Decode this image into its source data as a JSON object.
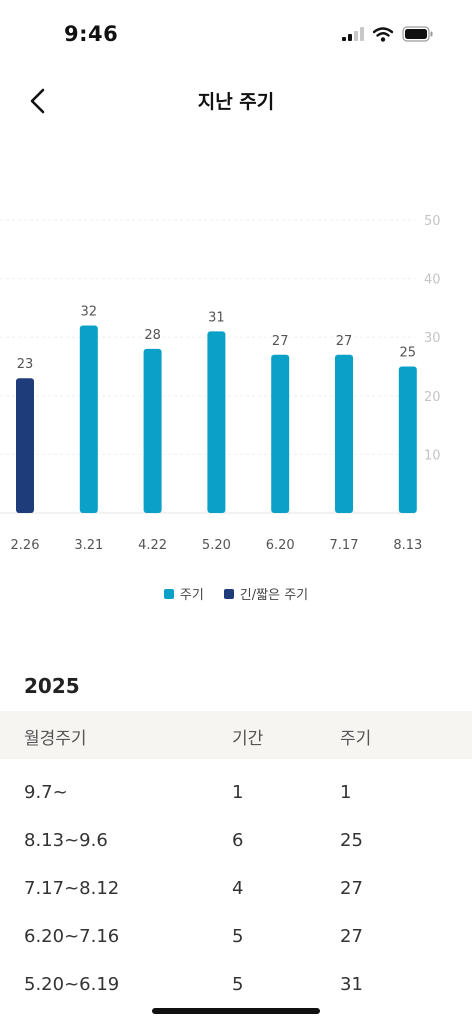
{
  "status_bar": {
    "time": "9:46"
  },
  "header": {
    "title": "지난 주기"
  },
  "colors": {
    "normal": "#0aa0c8",
    "long_short": "#1f3c7a"
  },
  "chart_data": {
    "type": "bar",
    "categories": [
      "2.26",
      "3.21",
      "4.22",
      "5.20",
      "6.20",
      "7.17",
      "8.13"
    ],
    "values": [
      23,
      32,
      28,
      31,
      27,
      27,
      25
    ],
    "kinds": [
      "long_short",
      "normal",
      "normal",
      "normal",
      "normal",
      "normal",
      "normal"
    ],
    "y_ticks": [
      "10",
      "20",
      "30",
      "40",
      "50"
    ],
    "ylim": [
      0,
      50
    ],
    "grid": true,
    "legend": [
      {
        "label": "주기",
        "kind": "normal"
      },
      {
        "label": "긴/짧은 주기",
        "kind": "long_short"
      }
    ],
    "legend_position": "bottom"
  },
  "table": {
    "year": "2025",
    "headers": [
      "월경주기",
      "기간",
      "주기"
    ],
    "rows": [
      [
        "9.7~",
        "1",
        "1"
      ],
      [
        "8.13~9.6",
        "6",
        "25"
      ],
      [
        "7.17~8.12",
        "4",
        "27"
      ],
      [
        "6.20~7.16",
        "5",
        "27"
      ],
      [
        "5.20~6.19",
        "5",
        "31"
      ]
    ]
  }
}
